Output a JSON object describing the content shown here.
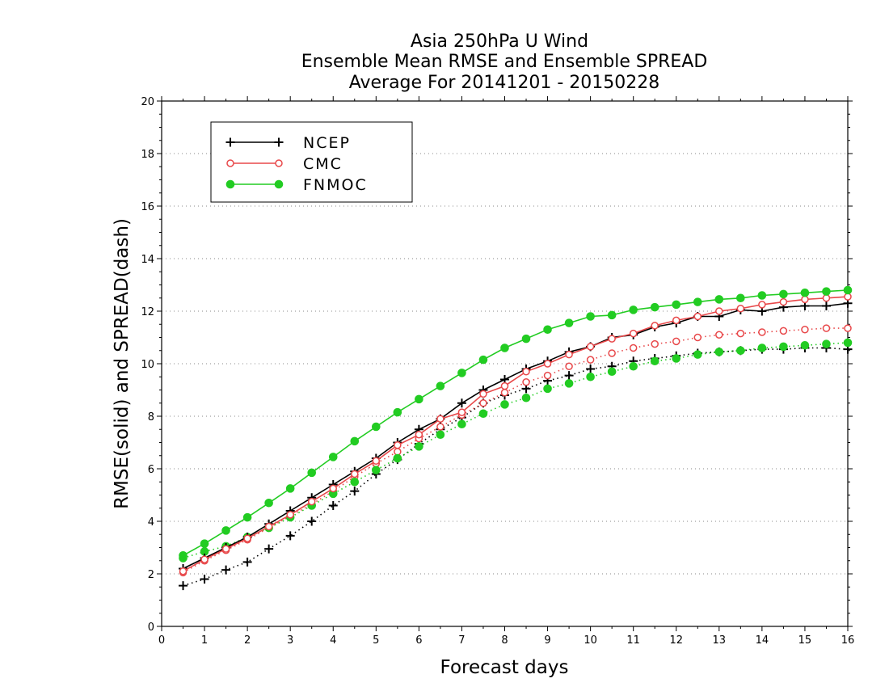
{
  "chart_data": {
    "type": "line",
    "title_lines": [
      "Asia 250hPa U Wind",
      "Ensemble Mean RMSE and Ensemble SPREAD",
      "Average For 20141201 - 20150228"
    ],
    "xlabel": "Forecast days",
    "ylabel": "RMSE(solid) and SPREAD(dash)",
    "xlim": [
      0,
      16
    ],
    "ylim": [
      0,
      20
    ],
    "x_ticks": [
      0,
      1,
      2,
      3,
      4,
      5,
      6,
      7,
      8,
      9,
      10,
      11,
      12,
      13,
      14,
      15,
      16
    ],
    "y_ticks": [
      0,
      2,
      4,
      6,
      8,
      10,
      12,
      14,
      16,
      18,
      20
    ],
    "grid": "horizontal dotted",
    "legend_position": "top-left",
    "x": [
      0.5,
      1,
      1.5,
      2,
      2.5,
      3,
      3.5,
      4,
      4.5,
      5,
      5.5,
      6,
      6.5,
      7,
      7.5,
      8,
      8.5,
      9,
      9.5,
      10,
      10.5,
      11,
      11.5,
      12,
      12.5,
      13,
      13.5,
      14,
      14.5,
      15,
      15.5,
      16
    ],
    "series": [
      {
        "name": "NCEP",
        "color": "#000000",
        "marker": "plus",
        "rmse": [
          2.2,
          2.6,
          3.0,
          3.4,
          3.9,
          4.4,
          4.9,
          5.4,
          5.9,
          6.4,
          7.0,
          7.5,
          7.9,
          8.5,
          9.0,
          9.4,
          9.8,
          10.1,
          10.45,
          10.65,
          11.0,
          11.1,
          11.4,
          11.55,
          11.8,
          11.8,
          12.05,
          12.0,
          12.15,
          12.2,
          12.2,
          12.3
        ],
        "spread": [
          1.55,
          1.8,
          2.15,
          2.45,
          2.95,
          3.45,
          4.0,
          4.6,
          5.15,
          5.8,
          6.35,
          6.95,
          7.5,
          7.95,
          8.5,
          8.8,
          9.05,
          9.35,
          9.55,
          9.8,
          9.9,
          10.1,
          10.2,
          10.3,
          10.4,
          10.45,
          10.5,
          10.55,
          10.55,
          10.6,
          10.6,
          10.55
        ]
      },
      {
        "name": "CMC",
        "color": "#e8484a",
        "marker": "open-circle",
        "rmse": [
          2.1,
          2.55,
          2.95,
          3.35,
          3.8,
          4.25,
          4.75,
          5.25,
          5.8,
          6.3,
          6.9,
          7.3,
          7.9,
          8.15,
          8.85,
          9.15,
          9.7,
          10.0,
          10.35,
          10.65,
          10.95,
          11.15,
          11.45,
          11.65,
          11.8,
          12.0,
          12.1,
          12.25,
          12.35,
          12.45,
          12.5,
          12.55
        ],
        "spread": [
          2.05,
          2.5,
          2.9,
          3.3,
          3.75,
          4.2,
          4.65,
          5.15,
          5.7,
          6.2,
          6.65,
          7.15,
          7.6,
          8.05,
          8.5,
          8.9,
          9.3,
          9.55,
          9.9,
          10.15,
          10.4,
          10.6,
          10.75,
          10.85,
          11.0,
          11.1,
          11.15,
          11.2,
          11.25,
          11.3,
          11.35,
          11.35
        ]
      },
      {
        "name": "FNMOC",
        "color": "#22cc22",
        "marker": "filled-circle",
        "rmse": [
          2.7,
          3.15,
          3.65,
          4.15,
          4.7,
          5.25,
          5.85,
          6.45,
          7.05,
          7.6,
          8.15,
          8.65,
          9.15,
          9.65,
          10.15,
          10.6,
          10.95,
          11.3,
          11.55,
          11.8,
          11.85,
          12.05,
          12.15,
          12.25,
          12.35,
          12.45,
          12.5,
          12.6,
          12.65,
          12.7,
          12.75,
          12.8
        ],
        "spread": [
          2.6,
          2.85,
          3.05,
          3.4,
          3.75,
          4.15,
          4.6,
          5.05,
          5.5,
          5.95,
          6.4,
          6.85,
          7.3,
          7.7,
          8.1,
          8.45,
          8.7,
          9.05,
          9.25,
          9.5,
          9.7,
          9.9,
          10.1,
          10.2,
          10.35,
          10.45,
          10.5,
          10.6,
          10.65,
          10.7,
          10.75,
          10.8
        ]
      }
    ]
  }
}
